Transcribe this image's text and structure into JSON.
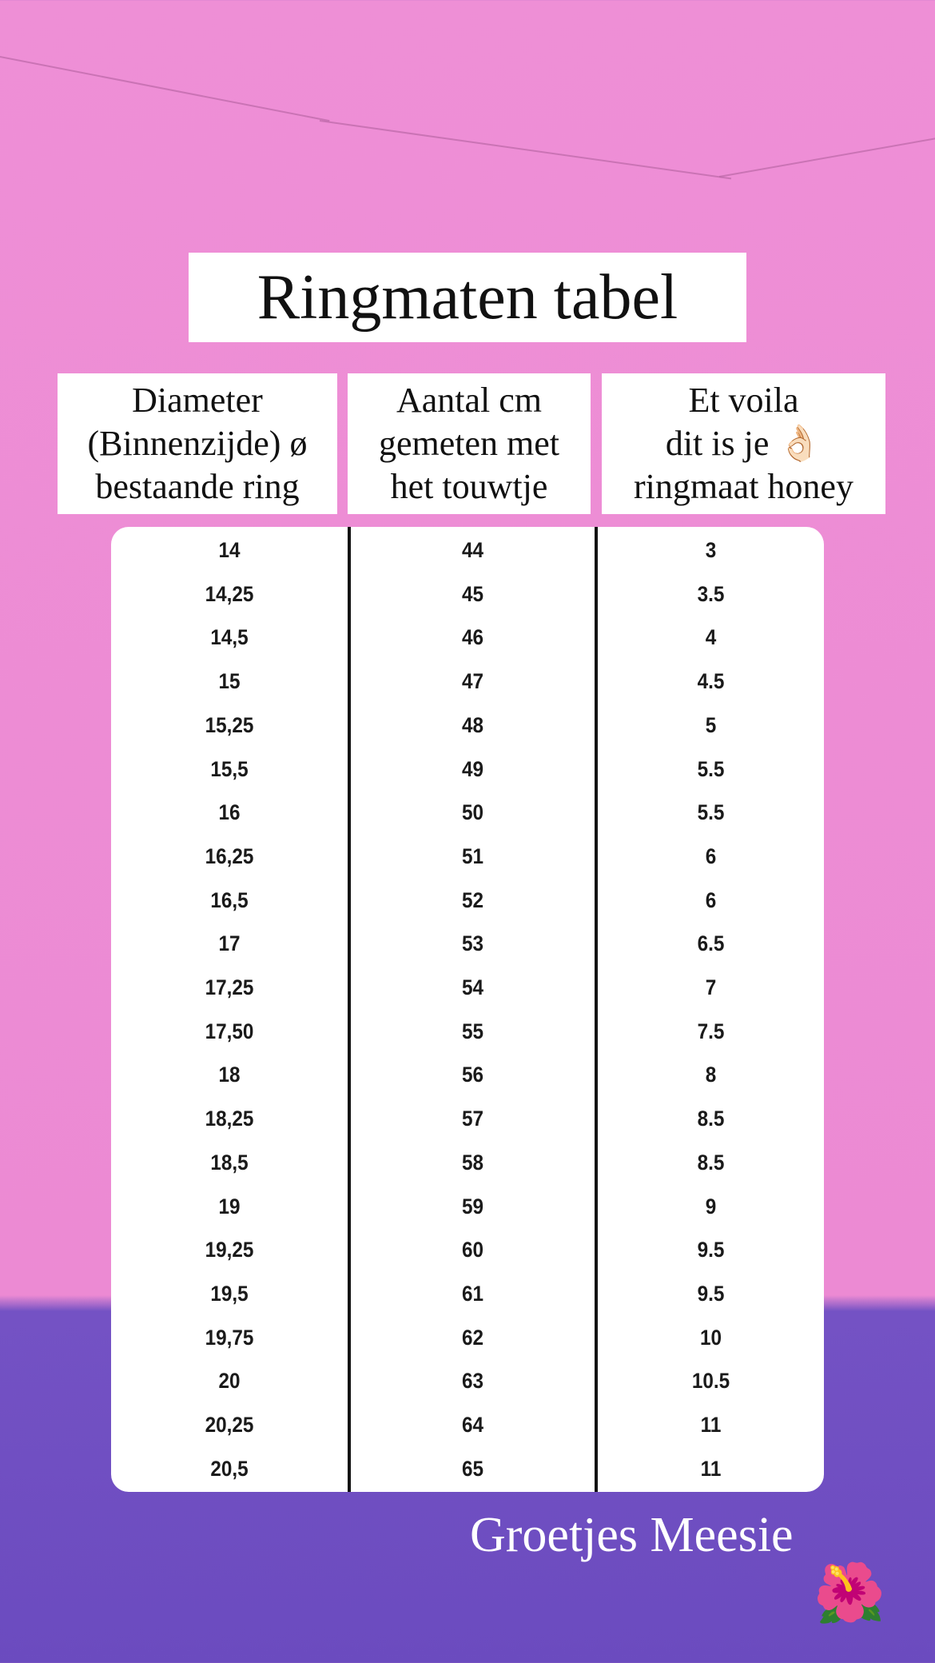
{
  "title": "Ringmaten tabel",
  "headers": [
    {
      "lines": [
        "Diameter",
        "(Binnenzijde) ø",
        "bestaande ring"
      ]
    },
    {
      "lines": [
        "Aantal cm",
        "gemeten met",
        "het touwtje"
      ]
    },
    {
      "lines": [
        "Et voila",
        "dit is je 👌🏻",
        "ringmaat honey"
      ]
    }
  ],
  "rows": [
    [
      "14",
      "44",
      "3"
    ],
    [
      "14,25",
      "45",
      "3.5"
    ],
    [
      "14,5",
      "46",
      "4"
    ],
    [
      "15",
      "47",
      "4.5"
    ],
    [
      "15,25",
      "48",
      "5"
    ],
    [
      "15,5",
      "49",
      "5.5"
    ],
    [
      "16",
      "50",
      "5.5"
    ],
    [
      "16,25",
      "51",
      "6"
    ],
    [
      "16,5",
      "52",
      "6"
    ],
    [
      "17",
      "53",
      "6.5"
    ],
    [
      "17,25",
      "54",
      "7"
    ],
    [
      "17,50",
      "55",
      "7.5"
    ],
    [
      "18",
      "56",
      "8"
    ],
    [
      "18,25",
      "57",
      "8.5"
    ],
    [
      "18,5",
      "58",
      "8.5"
    ],
    [
      "19",
      "59",
      "9"
    ],
    [
      "19,25",
      "60",
      "9.5"
    ],
    [
      "19,5",
      "61",
      "9.5"
    ],
    [
      "19,75",
      "62",
      "10"
    ],
    [
      "20",
      "63",
      "10.5"
    ],
    [
      "20,25",
      "64",
      "11"
    ],
    [
      "20,5",
      "65",
      "11"
    ]
  ],
  "signature": "Groetjes Meesie",
  "flower_emoji": "🌺",
  "colors": {
    "pink_wall": "#ee8fd6",
    "purple_wall": "#6b4bbf"
  }
}
